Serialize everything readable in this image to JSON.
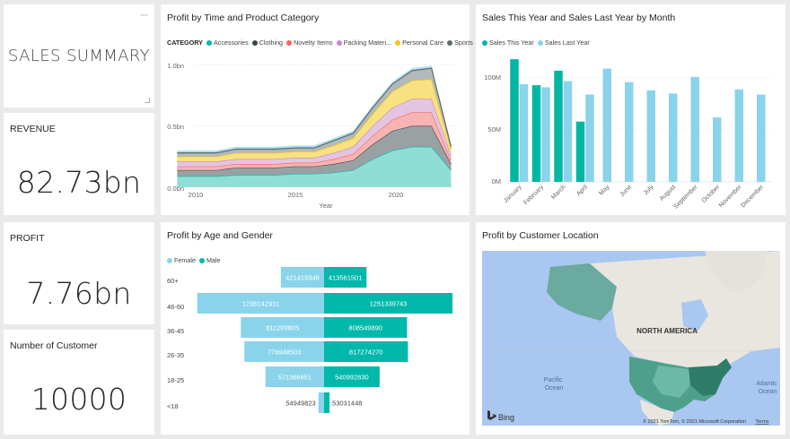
{
  "summary": {
    "title": "SALES SUMMARY",
    "more": "···"
  },
  "kpis": {
    "revenue": {
      "label": "REVENUE",
      "value": "82.73bn"
    },
    "profit": {
      "label": "PROFIT",
      "value": "7.76bn"
    },
    "customers": {
      "label": "Number of Customer",
      "value": "10000"
    }
  },
  "colors": {
    "accessories": "#01b8aa",
    "clothing": "#374649",
    "novelty": "#fd625e",
    "packing": "#c788c3",
    "personal": "#f2c80f",
    "sports": "#5f6b6d",
    "this_year": "#00b7a4",
    "last_year": "#8ad4eb",
    "female": "#8ad4eb",
    "male": "#01b8aa"
  },
  "area_chart": {
    "title": "Profit by Time and Product Category",
    "legend_title": "CATEGORY",
    "legend": [
      "Accessories",
      "Clothing",
      "Novelty Items",
      "Packing Materi...",
      "Personal Care",
      "Sports"
    ],
    "xlabel": "Year",
    "y_ticks": [
      "0.0bn",
      "0.5bn",
      "1.0bn"
    ],
    "x_ticks": [
      "2010",
      "2015",
      "2020"
    ]
  },
  "bar_chart": {
    "title": "Sales This Year and Sales Last Year by Month",
    "legend": [
      "Sales This Year",
      "Sales Last Year"
    ],
    "y_ticks": [
      "0M",
      "50M",
      "100M"
    ],
    "months": [
      "January",
      "February",
      "March",
      "April",
      "May",
      "June",
      "July",
      "August",
      "September",
      "October",
      "November",
      "December"
    ]
  },
  "pyramid": {
    "title": "Profit by Age and Gender",
    "legend": [
      "Female",
      "Male"
    ],
    "groups": [
      "60+",
      "46-60",
      "36-45",
      "26-35",
      "18-25",
      "<18"
    ]
  },
  "map": {
    "title": "Profit by Customer Location",
    "continent": "NORTH AMERICA",
    "pacific": "Pacific\nOcean",
    "atlantic": "Atlantic\nOcean",
    "bing": "Bing",
    "copyright": "© 2021 TomTom, © 2021 Microsoft Corporation",
    "terms": "Terms"
  },
  "chart_data": [
    {
      "type": "area",
      "title": "Profit by Time and Product Category",
      "xlabel": "Year",
      "ylabel": "",
      "ylim": [
        0,
        1.1
      ],
      "x": [
        2009,
        2010,
        2011,
        2012,
        2013,
        2014,
        2015,
        2016,
        2017,
        2018,
        2019,
        2020,
        2021,
        2022,
        2023
      ],
      "series": [
        {
          "name": "Accessories",
          "values": [
            0.09,
            0.09,
            0.09,
            0.1,
            0.1,
            0.1,
            0.11,
            0.11,
            0.12,
            0.14,
            0.23,
            0.3,
            0.33,
            0.33,
            0.14
          ]
        },
        {
          "name": "Clothing",
          "values": [
            0.05,
            0.05,
            0.05,
            0.06,
            0.06,
            0.06,
            0.06,
            0.06,
            0.07,
            0.08,
            0.12,
            0.16,
            0.17,
            0.17,
            0.05
          ]
        },
        {
          "name": "Novelty Items",
          "values": [
            0.03,
            0.03,
            0.03,
            0.03,
            0.03,
            0.03,
            0.03,
            0.03,
            0.04,
            0.05,
            0.07,
            0.09,
            0.11,
            0.11,
            0.03
          ]
        },
        {
          "name": "Packing Materials",
          "values": [
            0.04,
            0.04,
            0.04,
            0.04,
            0.04,
            0.04,
            0.04,
            0.04,
            0.05,
            0.06,
            0.08,
            0.1,
            0.11,
            0.11,
            0.04
          ]
        },
        {
          "name": "Personal Care",
          "values": [
            0.04,
            0.04,
            0.04,
            0.05,
            0.05,
            0.05,
            0.05,
            0.05,
            0.06,
            0.07,
            0.1,
            0.13,
            0.15,
            0.16,
            0.05
          ]
        },
        {
          "name": "Sports",
          "values": [
            0.03,
            0.03,
            0.03,
            0.03,
            0.03,
            0.03,
            0.03,
            0.03,
            0.04,
            0.04,
            0.05,
            0.06,
            0.08,
            0.09,
            0.02
          ]
        }
      ]
    },
    {
      "type": "bar",
      "title": "Sales This Year and Sales Last Year by Month",
      "categories": [
        "January",
        "February",
        "March",
        "April",
        "May",
        "June",
        "July",
        "August",
        "September",
        "October",
        "November",
        "December"
      ],
      "ylim": [
        0,
        120
      ],
      "series": [
        {
          "name": "Sales This Year",
          "values": [
            118,
            93,
            107,
            58,
            null,
            null,
            null,
            null,
            null,
            null,
            null,
            null
          ]
        },
        {
          "name": "Sales Last Year",
          "values": [
            94,
            91,
            97,
            84,
            109,
            96,
            88,
            85,
            101,
            62,
            89,
            84
          ]
        }
      ]
    },
    {
      "type": "bar",
      "title": "Profit by Age and Gender",
      "categories": [
        "60+",
        "46-60",
        "36-45",
        "26-35",
        "18-25",
        "<18"
      ],
      "series": [
        {
          "name": "Female",
          "values": [
            421419348,
            1236142911,
            811209805,
            776948503,
            571366651,
            54949823
          ]
        },
        {
          "name": "Male",
          "values": [
            413561501,
            1251339743,
            808549890,
            817274270,
            540992830,
            53031448
          ]
        }
      ]
    }
  ]
}
